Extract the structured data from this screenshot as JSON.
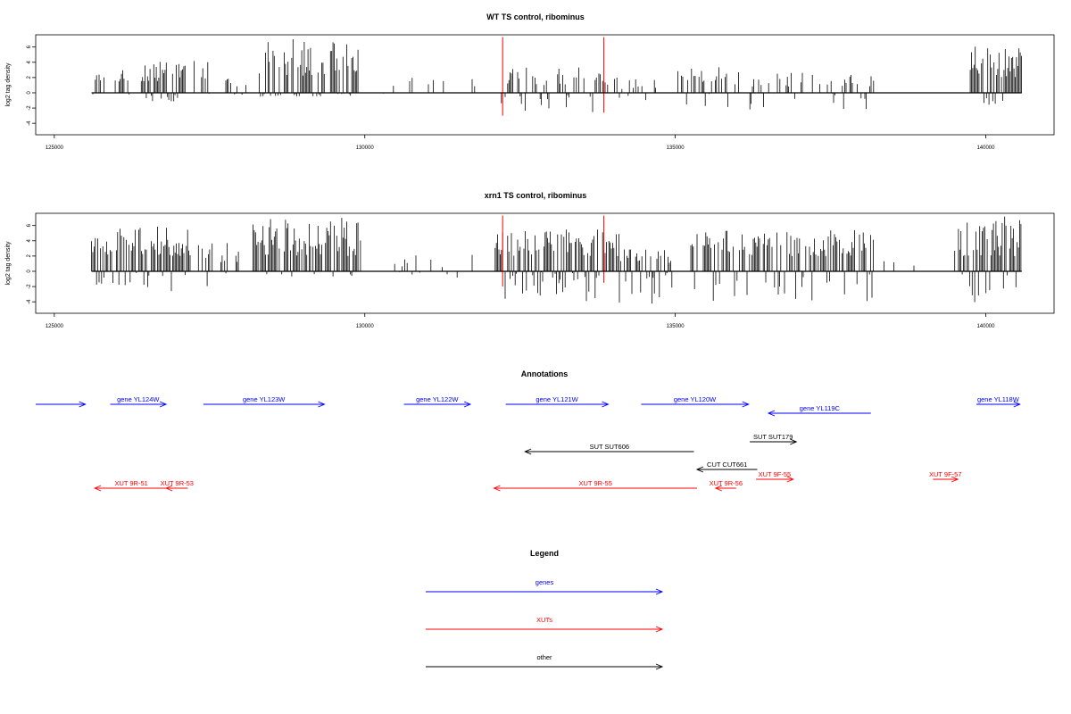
{
  "chart_data": [
    {
      "type": "bar",
      "title": "WT TS control, ribominus",
      "ylabel": "log2 tag density",
      "xlim": [
        124700,
        141100
      ],
      "ylim": [
        -5.5,
        7.6
      ],
      "x_ticks": [
        125000,
        130000,
        135000,
        140000
      ],
      "y_ticks": [
        -4,
        -2,
        0,
        2,
        4,
        6
      ],
      "x_tick_labels": [
        "125000",
        "130000",
        "135000",
        "140000"
      ],
      "y_tick_labels": [
        "-4",
        "-2",
        "0",
        "2",
        "4",
        "6"
      ],
      "grid": false,
      "baseline": {
        "from": 125600,
        "to": 140580,
        "value": 0
      },
      "markers": [
        {
          "x": 132220,
          "low": -3.0,
          "high": 7.3,
          "color": "#ff0000"
        },
        {
          "x": 133850,
          "low": -2.6,
          "high": 7.3,
          "color": "#ff0000"
        }
      ],
      "regions": [
        {
          "from": 125600,
          "to": 125850,
          "pos": [
            1.6,
            2.7
          ],
          "neg": [
            -0.3,
            0
          ],
          "density": 0.7
        },
        {
          "from": 125980,
          "to": 126220,
          "pos": [
            1.4,
            3.2
          ],
          "neg": [
            -0.3,
            0
          ],
          "density": 0.7
        },
        {
          "from": 126380,
          "to": 127120,
          "pos": [
            1.5,
            4.3
          ],
          "neg": [
            -1.2,
            0
          ],
          "density": 0.8
        },
        {
          "from": 127250,
          "to": 127550,
          "pos": [
            1.8,
            4.5
          ],
          "neg": [
            -1.5,
            0
          ],
          "density": 0.8
        },
        {
          "from": 127600,
          "to": 128100,
          "pos": [
            0.8,
            2.2
          ],
          "neg": [
            -0.3,
            0
          ],
          "density": 0.35
        },
        {
          "from": 128300,
          "to": 129900,
          "pos": [
            2.2,
            7.1
          ],
          "neg": [
            -0.5,
            0
          ],
          "density": 0.9
        },
        {
          "from": 130300,
          "to": 131800,
          "pos": [
            0.8,
            2.0
          ],
          "neg": [
            -0.2,
            0
          ],
          "density": 0.15
        },
        {
          "from": 132200,
          "to": 134000,
          "pos": [
            1.0,
            3.4
          ],
          "neg": [
            -2.6,
            0
          ],
          "density": 0.5
        },
        {
          "from": 134000,
          "to": 134700,
          "pos": [
            0.5,
            2.0
          ],
          "neg": [
            -2.2,
            0
          ],
          "density": 0.3
        },
        {
          "from": 135000,
          "to": 135900,
          "pos": [
            1.4,
            3.4
          ],
          "neg": [
            -2.5,
            0
          ],
          "density": 0.5
        },
        {
          "from": 135900,
          "to": 138200,
          "pos": [
            0.8,
            3.0
          ],
          "neg": [
            -3.4,
            0
          ],
          "density": 0.3
        },
        {
          "from": 139750,
          "to": 140580,
          "pos": [
            2.0,
            6.4
          ],
          "neg": [
            -2.2,
            0
          ],
          "density": 0.85
        }
      ]
    },
    {
      "type": "bar",
      "title": "xrn1 TS control, ribominus",
      "ylabel": "log2 tag density",
      "xlim": [
        124700,
        141100
      ],
      "ylim": [
        -5.5,
        7.6
      ],
      "x_ticks": [
        125000,
        130000,
        135000,
        140000
      ],
      "y_ticks": [
        -4,
        -2,
        0,
        2,
        4,
        6
      ],
      "x_tick_labels": [
        "125000",
        "130000",
        "135000",
        "140000"
      ],
      "y_tick_labels": [
        "-4",
        "-2",
        "0",
        "2",
        "4",
        "6"
      ],
      "grid": false,
      "baseline": {
        "from": 125600,
        "to": 140580,
        "value": 0
      },
      "markers": [
        {
          "x": 132220,
          "low": -2.0,
          "high": 7.3,
          "color": "#ff0000"
        },
        {
          "x": 133850,
          "low": -1.5,
          "high": 7.3,
          "color": "#ff0000"
        }
      ],
      "regions": [
        {
          "from": 125600,
          "to": 125950,
          "pos": [
            2.0,
            4.7
          ],
          "neg": [
            -2.2,
            0
          ],
          "density": 0.9
        },
        {
          "from": 126000,
          "to": 127200,
          "pos": [
            2.0,
            6.4
          ],
          "neg": [
            -2.6,
            0
          ],
          "density": 0.95
        },
        {
          "from": 127300,
          "to": 128000,
          "pos": [
            1.2,
            3.7
          ],
          "neg": [
            -2.8,
            0
          ],
          "density": 0.4
        },
        {
          "from": 128200,
          "to": 129950,
          "pos": [
            2.0,
            7.0
          ],
          "neg": [
            -0.8,
            0
          ],
          "density": 0.85
        },
        {
          "from": 130400,
          "to": 131800,
          "pos": [
            0.5,
            2.6
          ],
          "neg": [
            -1.2,
            0
          ],
          "density": 0.2
        },
        {
          "from": 132100,
          "to": 134100,
          "pos": [
            2.0,
            5.5
          ],
          "neg": [
            -4.4,
            0
          ],
          "density": 0.95
        },
        {
          "from": 134100,
          "to": 135000,
          "pos": [
            1.0,
            3.0
          ],
          "neg": [
            -4.4,
            0
          ],
          "density": 0.7
        },
        {
          "from": 135250,
          "to": 138200,
          "pos": [
            2.0,
            5.4
          ],
          "neg": [
            -4.0,
            0
          ],
          "density": 0.8
        },
        {
          "from": 138200,
          "to": 139500,
          "pos": [
            0.5,
            2.0
          ],
          "neg": [
            -0.3,
            0
          ],
          "density": 0.08
        },
        {
          "from": 139500,
          "to": 140580,
          "pos": [
            2.0,
            7.3
          ],
          "neg": [
            -4.3,
            0
          ],
          "density": 0.9
        }
      ]
    }
  ],
  "annotations": {
    "title": "Annotations",
    "xlim": [
      124700,
      141100
    ],
    "features": [
      {
        "label": "",
        "from": 124700,
        "to": 125500,
        "strand": "+",
        "row": 0,
        "color": "#0000ff"
      },
      {
        "label": "gene YL124W",
        "from": 125900,
        "to": 126800,
        "strand": "+",
        "row": 0,
        "color": "#0000ff"
      },
      {
        "label": "gene YL123W",
        "from": 127400,
        "to": 129350,
        "strand": "+",
        "row": 0,
        "color": "#0000ff"
      },
      {
        "label": "gene YL122W",
        "from": 130630,
        "to": 131700,
        "strand": "+",
        "row": 0,
        "color": "#0000ff"
      },
      {
        "label": "gene YL121W",
        "from": 132270,
        "to": 133920,
        "strand": "+",
        "row": 0,
        "color": "#0000ff"
      },
      {
        "label": "gene YL120W",
        "from": 134450,
        "to": 136180,
        "strand": "+",
        "row": 0,
        "color": "#0000ff"
      },
      {
        "label": "gene YL119C",
        "from": 136500,
        "to": 138150,
        "strand": "-",
        "row": 1,
        "color": "#0000ff"
      },
      {
        "label": "gene YL118W",
        "from": 139850,
        "to": 140550,
        "strand": "+",
        "row": 0,
        "color": "#0000ff"
      },
      {
        "label": "SUT SUT606",
        "from": 132580,
        "to": 135300,
        "strand": "-",
        "row": 3,
        "color": "#000000"
      },
      {
        "label": "SUT SUT179",
        "from": 136200,
        "to": 136950,
        "strand": "+",
        "row": 2,
        "color": "#000000"
      },
      {
        "label": "CUT CUT661",
        "from": 135350,
        "to": 136320,
        "strand": "-",
        "row": 4,
        "color": "#000000"
      },
      {
        "label": "XUT 9R-51",
        "from": 125650,
        "to": 126830,
        "strand": "-",
        "row": 6,
        "color": "#ff0000"
      },
      {
        "label": "XUT 9R-53",
        "from": 126800,
        "to": 127150,
        "strand": "-",
        "row": 6,
        "color": "#ff0000"
      },
      {
        "label": "XUT 9R-55",
        "from": 132080,
        "to": 135350,
        "strand": "-",
        "row": 6,
        "color": "#ff0000"
      },
      {
        "label": "XUT 9R-56",
        "from": 135650,
        "to": 135980,
        "strand": "-",
        "row": 6,
        "color": "#ff0000"
      },
      {
        "label": "XUT 9F-55",
        "from": 136300,
        "to": 136900,
        "strand": "+",
        "row": 5,
        "color": "#ff0000"
      },
      {
        "label": "XUT 9F-57",
        "from": 139150,
        "to": 139550,
        "strand": "+",
        "row": 5,
        "color": "#ff0000"
      }
    ]
  },
  "legend": {
    "title": "Legend",
    "items": [
      {
        "label": "genes",
        "color": "#0000ff"
      },
      {
        "label": "XUTs",
        "color": "#ff0000"
      },
      {
        "label": "other",
        "color": "#000000"
      }
    ]
  }
}
